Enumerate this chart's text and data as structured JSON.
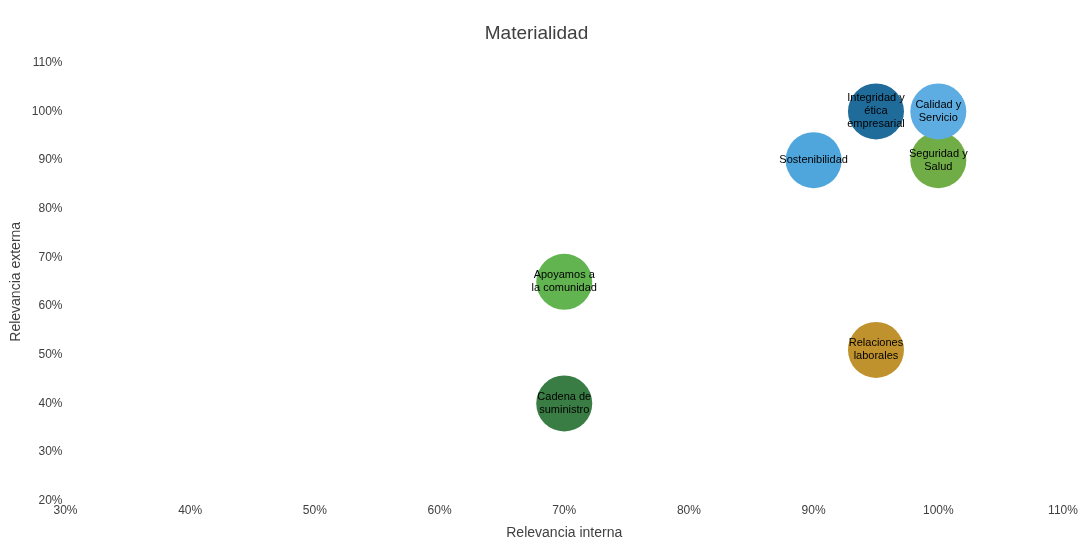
{
  "chart_data": {
    "type": "bubble",
    "title": "Materialidad",
    "xlabel": "Relevancia interna",
    "ylabel": "Relevancia externa",
    "xlim": [
      30,
      110
    ],
    "xticks": [
      {
        "value": 30,
        "label": "30%"
      },
      {
        "value": 40,
        "label": "40%"
      },
      {
        "value": 50,
        "label": "50%"
      },
      {
        "value": 60,
        "label": "60%"
      },
      {
        "value": 70,
        "label": "70%"
      },
      {
        "value": 80,
        "label": "80%"
      },
      {
        "value": 90,
        "label": "90%"
      },
      {
        "value": 100,
        "label": "100%"
      },
      {
        "value": 110,
        "label": "110%"
      }
    ],
    "ylim": [
      20,
      110
    ],
    "yticks": [
      {
        "value": 20,
        "label": "20%"
      },
      {
        "value": 30,
        "label": "30%"
      },
      {
        "value": 40,
        "label": "40%"
      },
      {
        "value": 50,
        "label": "50%"
      },
      {
        "value": 60,
        "label": "60%"
      },
      {
        "value": 70,
        "label": "70%"
      },
      {
        "value": 80,
        "label": "80%"
      },
      {
        "value": 90,
        "label": "90%"
      },
      {
        "value": 100,
        "label": "100%"
      },
      {
        "value": 110,
        "label": "110%"
      }
    ],
    "grid": false,
    "legend": false,
    "series": [
      {
        "name": "Sostenibilidad",
        "color": "#4ea6dc",
        "x": [
          90
        ],
        "values": [
          90
        ],
        "sizes": [
          1
        ]
      },
      {
        "name": "Integridad y ética empresarial",
        "color": "#1f6b9a",
        "x": [
          95
        ],
        "values": [
          100
        ],
        "sizes": [
          1
        ]
      },
      {
        "name": "Calidad y Servicio",
        "color": "#5dade2",
        "x": [
          100
        ],
        "values": [
          100
        ],
        "sizes": [
          1
        ]
      },
      {
        "name": "Seguridad y Salud",
        "color": "#70ad47",
        "x": [
          100
        ],
        "values": [
          90
        ],
        "sizes": [
          1
        ]
      },
      {
        "name": "Apoyamos a la comunidad",
        "color": "#62b450",
        "x": [
          70
        ],
        "values": [
          65
        ],
        "sizes": [
          1
        ]
      },
      {
        "name": "Relaciones laborales",
        "color": "#c0922e",
        "x": [
          95
        ],
        "values": [
          51
        ],
        "sizes": [
          1
        ]
      },
      {
        "name": "Cadena de suministro",
        "color": "#3a7d44",
        "x": [
          70
        ],
        "values": [
          40
        ],
        "sizes": [
          1
        ]
      }
    ]
  }
}
